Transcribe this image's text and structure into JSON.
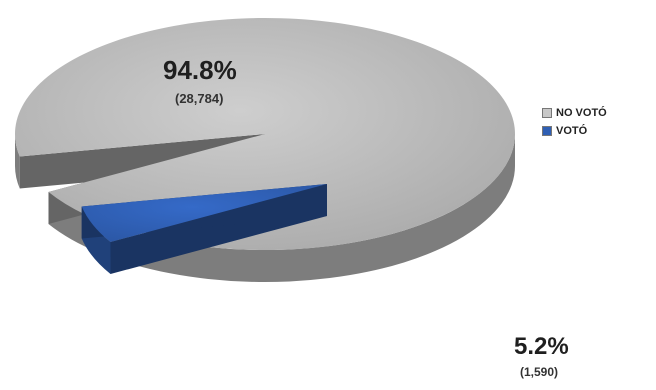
{
  "chart_data": {
    "type": "pie",
    "title": "",
    "slices": [
      {
        "label": "NO VOTÓ",
        "percent_label": "94.8%",
        "count_label": "(28,784)",
        "value": 28784,
        "color": "#b8b8b8"
      },
      {
        "label": "VOTÓ",
        "percent_label": "5.2%",
        "count_label": "(1,590)",
        "value": 1590,
        "color": "#2f5fb3"
      }
    ],
    "legend_position": "right",
    "three_d": true,
    "exploded_slice": "VOTÓ"
  }
}
